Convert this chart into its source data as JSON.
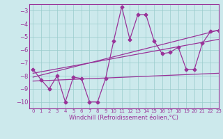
{
  "xlabel": "Windchill (Refroidissement éolien,°C)",
  "xlim": [
    -0.5,
    23
  ],
  "ylim": [
    -10.5,
    -2.5
  ],
  "yticks": [
    -10,
    -9,
    -8,
    -7,
    -6,
    -5,
    -4,
    -3
  ],
  "xticks": [
    0,
    1,
    2,
    3,
    4,
    5,
    6,
    7,
    8,
    9,
    10,
    11,
    12,
    13,
    14,
    15,
    16,
    17,
    18,
    19,
    20,
    21,
    22,
    23
  ],
  "bg_color": "#cce9ec",
  "line_color": "#993399",
  "grid_color": "#99cccc",
  "series_x": [
    0,
    1,
    2,
    3,
    4,
    5,
    6,
    7,
    8,
    9,
    10,
    11,
    12,
    13,
    14,
    15,
    16,
    17,
    18,
    19,
    20,
    21,
    22,
    23
  ],
  "series_y": [
    -7.5,
    -8.3,
    -9.0,
    -8.0,
    -10.0,
    -8.1,
    -8.2,
    -10.0,
    -10.0,
    -8.2,
    -5.3,
    -2.7,
    -5.2,
    -3.3,
    -3.3,
    -5.3,
    -6.3,
    -6.2,
    -5.8,
    -7.5,
    -7.5,
    -5.5,
    -4.6,
    -4.5
  ],
  "line2_x": [
    0,
    23
  ],
  "line2_y": [
    -7.8,
    -5.2
  ],
  "line3_x": [
    0,
    23
  ],
  "line3_y": [
    -8.4,
    -7.8
  ],
  "line4_x": [
    0,
    23
  ],
  "line4_y": [
    -8.1,
    -4.5
  ],
  "xlabel_fontsize": 6,
  "tick_fontsize": 6,
  "linewidth": 0.9,
  "markersize": 2.5
}
